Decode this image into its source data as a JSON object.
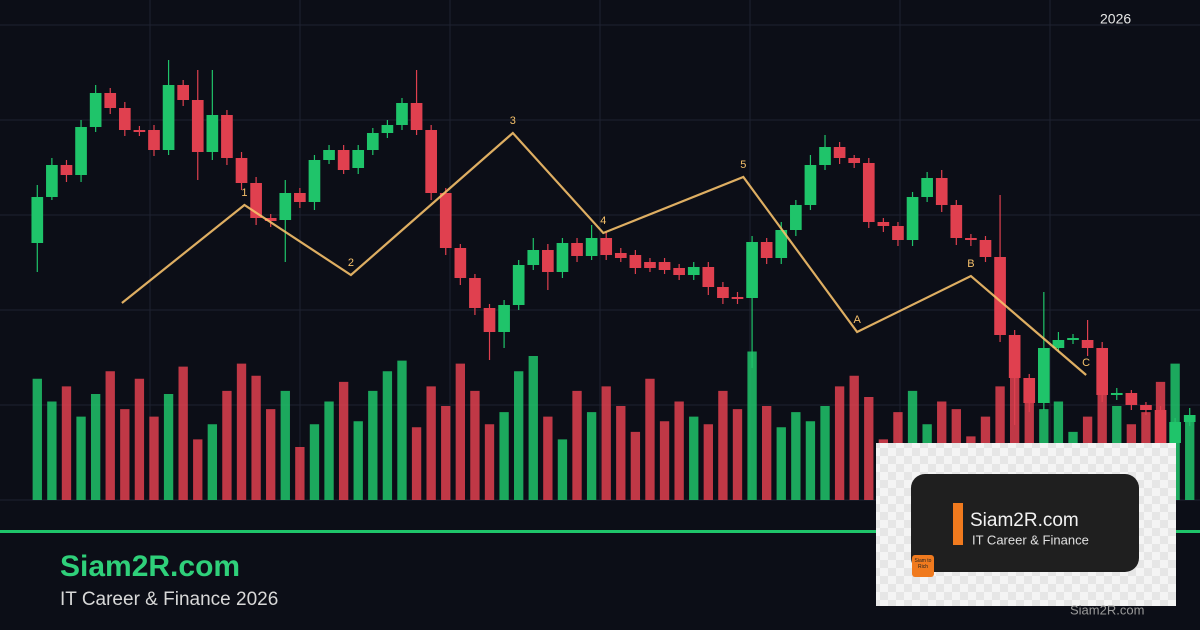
{
  "year_label": "2026",
  "brand": {
    "name": "Siam2R.com",
    "tagline": "IT Career & Finance 2026"
  },
  "logo": {
    "name": "Siam2R.com",
    "tagline": "IT Career & Finance",
    "badge": "Siam to Rich"
  },
  "watermark": "Siam2R.com",
  "chart_data": {
    "type": "candlestick",
    "open": [
      257,
      303,
      335,
      325,
      373,
      407,
      392,
      370,
      370,
      350,
      415,
      400,
      348,
      385,
      342,
      317,
      282,
      280,
      307,
      298,
      340,
      350,
      332,
      350,
      367,
      375,
      397,
      370,
      307,
      252,
      222,
      192,
      168,
      195,
      235,
      250,
      228,
      257,
      244,
      262,
      247,
      245,
      238,
      238,
      232,
      225,
      233,
      213,
      203,
      202,
      258,
      242,
      270,
      295,
      335,
      353,
      342,
      337,
      278,
      274,
      260,
      303,
      322,
      295,
      262,
      260,
      243,
      165,
      122,
      97,
      152,
      160,
      160,
      152,
      105,
      107,
      95,
      90,
      57,
      78
    ],
    "close": [
      303,
      335,
      325,
      373,
      407,
      392,
      370,
      368,
      350,
      415,
      400,
      348,
      385,
      342,
      317,
      282,
      279,
      307,
      298,
      340,
      350,
      330,
      350,
      367,
      375,
      397,
      370,
      307,
      252,
      222,
      192,
      168,
      195,
      235,
      250,
      228,
      257,
      244,
      262,
      245,
      242,
      232,
      232,
      230,
      225,
      233,
      213,
      202,
      201,
      258,
      242,
      270,
      295,
      335,
      353,
      342,
      337,
      278,
      274,
      260,
      303,
      322,
      295,
      262,
      260,
      243,
      165,
      122,
      97,
      152,
      160,
      162,
      152,
      105,
      107,
      95,
      90,
      57,
      78,
      85
    ],
    "high": [
      315,
      342,
      340,
      380,
      415,
      412,
      398,
      374,
      375,
      440,
      420,
      430,
      430,
      390,
      348,
      323,
      286,
      320,
      312,
      345,
      355,
      355,
      355,
      372,
      380,
      402,
      430,
      375,
      312,
      256,
      226,
      196,
      200,
      240,
      262,
      256,
      262,
      262,
      275,
      268,
      252,
      250,
      242,
      242,
      236,
      238,
      238,
      218,
      208,
      264,
      262,
      278,
      300,
      345,
      365,
      358,
      345,
      342,
      282,
      278,
      308,
      328,
      330,
      300,
      266,
      264,
      305,
      170,
      126,
      208,
      168,
      166,
      180,
      158,
      112,
      110,
      98,
      94,
      82,
      92
    ],
    "low": [
      228,
      300,
      318,
      318,
      368,
      386,
      364,
      364,
      344,
      345,
      394,
      320,
      340,
      335,
      310,
      275,
      273,
      238,
      292,
      290,
      336,
      326,
      326,
      345,
      362,
      370,
      365,
      300,
      245,
      215,
      185,
      140,
      152,
      190,
      230,
      210,
      222,
      238,
      240,
      240,
      238,
      226,
      228,
      226,
      220,
      220,
      205,
      196,
      196,
      132,
      236,
      236,
      264,
      290,
      330,
      336,
      332,
      272,
      268,
      254,
      254,
      298,
      288,
      255,
      254,
      238,
      158,
      75,
      88,
      90,
      148,
      156,
      144,
      98,
      100,
      90,
      85,
      50,
      52,
      74
    ],
    "volume": [
      80,
      65,
      75,
      55,
      70,
      85,
      60,
      80,
      55,
      70,
      88,
      40,
      50,
      72,
      90,
      82,
      60,
      72,
      35,
      50,
      65,
      78,
      52,
      72,
      85,
      92,
      48,
      75,
      62,
      90,
      72,
      50,
      58,
      85,
      95,
      55,
      40,
      72,
      58,
      75,
      62,
      45,
      80,
      52,
      65,
      55,
      50,
      72,
      60,
      98,
      62,
      48,
      58,
      52,
      62,
      75,
      82,
      68,
      40,
      58,
      72,
      50,
      65,
      60,
      42,
      55,
      75,
      88,
      72,
      60,
      65,
      45,
      55,
      80,
      62,
      50,
      58,
      78,
      90,
      55
    ],
    "xlim": [
      -0.5,
      79.5
    ],
    "ylim": [
      0,
      500
    ],
    "volume_lim": [
      0,
      330
    ],
    "up_color": "#1fc46a",
    "down_color": "#e0404f",
    "waves": {
      "x": [
        5.8,
        14.2,
        21.5,
        32.6,
        38.8,
        48.4,
        56.2,
        64.0,
        71.9
      ],
      "values": [
        197,
        295,
        225,
        367,
        267,
        323,
        168,
        224,
        125
      ],
      "labels": [
        null,
        "1",
        "2",
        "3",
        "4",
        "5",
        "A",
        "B",
        "C"
      ],
      "color": "#f5c06a"
    }
  }
}
